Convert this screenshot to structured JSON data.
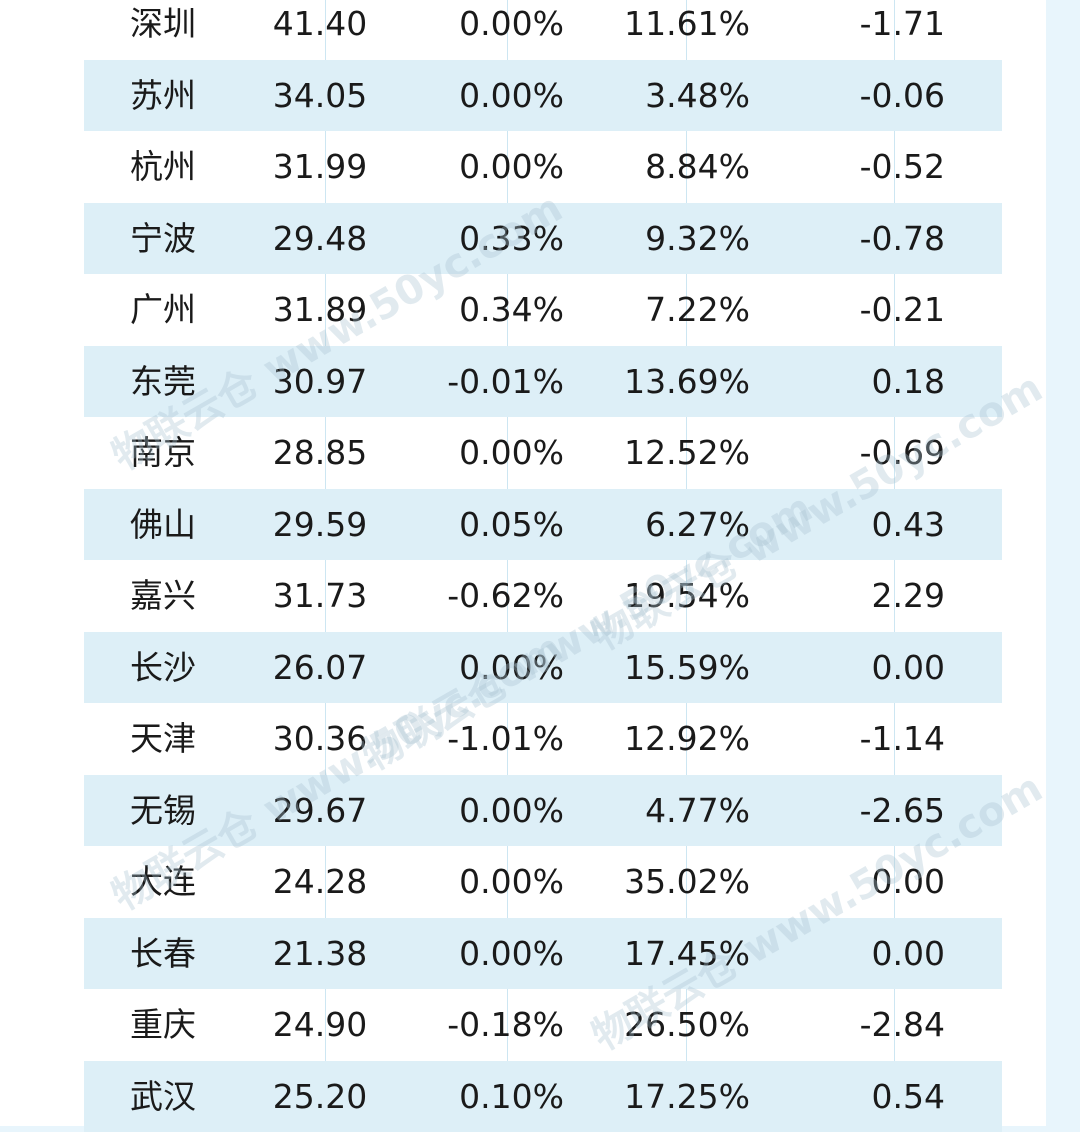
{
  "watermark": "物联云仓 www.50yc.com",
  "rows": [
    {
      "city": "深圳",
      "v1": "41.40",
      "v2": "0.00%",
      "v3": "11.61%",
      "v4": "-1.71"
    },
    {
      "city": "苏州",
      "v1": "34.05",
      "v2": "0.00%",
      "v3": "3.48%",
      "v4": "-0.06"
    },
    {
      "city": "杭州",
      "v1": "31.99",
      "v2": "0.00%",
      "v3": "8.84%",
      "v4": "-0.52"
    },
    {
      "city": "宁波",
      "v1": "29.48",
      "v2": "0.33%",
      "v3": "9.32%",
      "v4": "-0.78"
    },
    {
      "city": "广州",
      "v1": "31.89",
      "v2": "0.34%",
      "v3": "7.22%",
      "v4": "-0.21"
    },
    {
      "city": "东莞",
      "v1": "30.97",
      "v2": "-0.01%",
      "v3": "13.69%",
      "v4": "0.18"
    },
    {
      "city": "南京",
      "v1": "28.85",
      "v2": "0.00%",
      "v3": "12.52%",
      "v4": "-0.69"
    },
    {
      "city": "佛山",
      "v1": "29.59",
      "v2": "0.05%",
      "v3": "6.27%",
      "v4": "0.43"
    },
    {
      "city": "嘉兴",
      "v1": "31.73",
      "v2": "-0.62%",
      "v3": "19.54%",
      "v4": "2.29"
    },
    {
      "city": "长沙",
      "v1": "26.07",
      "v2": "0.00%",
      "v3": "15.59%",
      "v4": "0.00"
    },
    {
      "city": "天津",
      "v1": "30.36",
      "v2": "-1.01%",
      "v3": "12.92%",
      "v4": "-1.14"
    },
    {
      "city": "无锡",
      "v1": "29.67",
      "v2": "0.00%",
      "v3": "4.77%",
      "v4": "-2.65"
    },
    {
      "city": "大连",
      "v1": "24.28",
      "v2": "0.00%",
      "v3": "35.02%",
      "v4": "0.00"
    },
    {
      "city": "长春",
      "v1": "21.38",
      "v2": "0.00%",
      "v3": "17.45%",
      "v4": "0.00"
    },
    {
      "city": "重庆",
      "v1": "24.90",
      "v2": "-0.18%",
      "v3": "26.50%",
      "v4": "-2.84"
    },
    {
      "city": "武汉",
      "v1": "25.20",
      "v2": "0.10%",
      "v3": "17.25%",
      "v4": "0.54"
    }
  ]
}
